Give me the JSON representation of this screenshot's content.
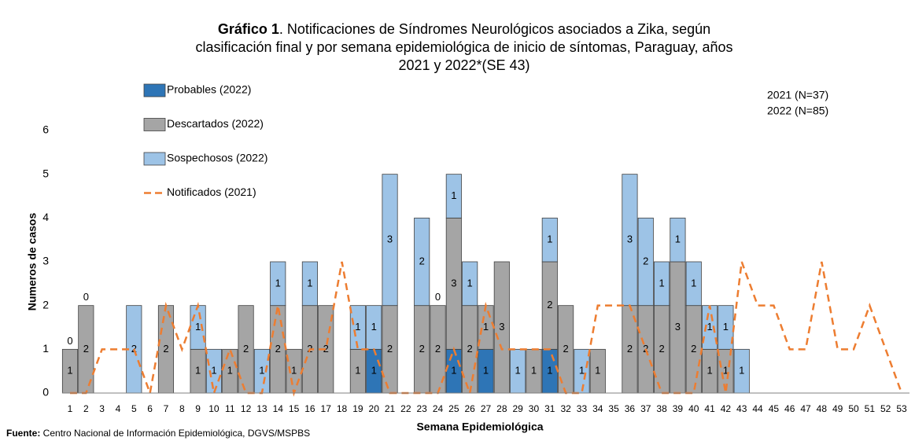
{
  "chart_data": {
    "type": "bar",
    "title_prefix": "Gráfico 1",
    "title_lines": [
      ". Notificaciones de Síndromes Neurológicos asociados a  Zika, según",
      "clasificación final y por semana epidemiológica de inicio de síntomas,  Paraguay, años",
      "2021 y 2022*(SE 43)"
    ],
    "annotations": [
      "2021 (N=37)",
      "2022 (N=85)"
    ],
    "source_prefix": "Fuente:",
    "source": " Centro Nacional de Información Epidemiológica, DGVS/MSPBS",
    "x_label": "Semana Epidemiológica",
    "y_label": "Numeros de casos",
    "categories": [
      1,
      2,
      3,
      4,
      5,
      6,
      7,
      8,
      9,
      10,
      11,
      12,
      13,
      14,
      15,
      16,
      17,
      18,
      19,
      20,
      21,
      22,
      23,
      24,
      25,
      26,
      27,
      28,
      29,
      30,
      31,
      32,
      33,
      34,
      35,
      36,
      37,
      38,
      39,
      40,
      41,
      42,
      43,
      44,
      45,
      46,
      47,
      48,
      49,
      50,
      51,
      52,
      53
    ],
    "series": [
      {
        "name": "Probables (2022)",
        "color": "#2e75b6",
        "values": [
          null,
          null,
          null,
          null,
          null,
          null,
          null,
          null,
          null,
          null,
          null,
          null,
          null,
          null,
          null,
          null,
          null,
          null,
          null,
          1,
          null,
          null,
          null,
          null,
          1,
          null,
          1,
          null,
          null,
          null,
          1,
          null,
          null,
          null,
          null,
          null,
          null,
          null,
          null,
          null,
          null,
          null,
          null,
          null,
          null,
          null,
          null,
          null,
          null,
          null,
          null,
          null,
          null
        ]
      },
      {
        "name": "Descartados (2022)",
        "color": "#a5a5a5",
        "values": [
          1,
          2,
          null,
          null,
          null,
          null,
          2,
          null,
          1,
          null,
          1,
          2,
          null,
          2,
          1,
          2,
          2,
          null,
          1,
          null,
          2,
          null,
          2,
          2,
          3,
          2,
          1,
          3,
          null,
          1,
          2,
          2,
          null,
          1,
          null,
          2,
          2,
          2,
          3,
          2,
          1,
          1,
          null,
          null,
          null,
          null,
          null,
          null,
          null,
          null,
          null,
          null,
          null
        ]
      },
      {
        "name": "Sospechosos (2022)",
        "color": "#9dc3e6",
        "values": [
          0,
          0,
          null,
          null,
          2,
          null,
          null,
          null,
          1,
          1,
          null,
          null,
          1,
          1,
          null,
          1,
          null,
          null,
          1,
          1,
          3,
          null,
          2,
          0,
          1,
          1,
          null,
          null,
          1,
          null,
          1,
          null,
          1,
          null,
          null,
          3,
          2,
          1,
          1,
          1,
          1,
          1,
          1,
          null,
          null,
          null,
          null,
          null,
          null,
          null,
          null,
          null,
          null
        ]
      },
      {
        "name": "Notificados (2021)",
        "type": "line",
        "color": "#ed7d31",
        "values": [
          0,
          0,
          1,
          1,
          1,
          0,
          2,
          1,
          2,
          0,
          1,
          0,
          0,
          2,
          0,
          1,
          1,
          3,
          1,
          1,
          0,
          0,
          0,
          0,
          1,
          0,
          2,
          1,
          1,
          1,
          1,
          0,
          0,
          2,
          2,
          2,
          1,
          0,
          0,
          0,
          2,
          0,
          3,
          2,
          2,
          1,
          1,
          3,
          1,
          1,
          2,
          1,
          0
        ]
      }
    ],
    "ylim": [
      0,
      6
    ],
    "yticks": [
      0,
      1,
      2,
      3,
      4,
      5,
      6
    ],
    "grid": false
  }
}
